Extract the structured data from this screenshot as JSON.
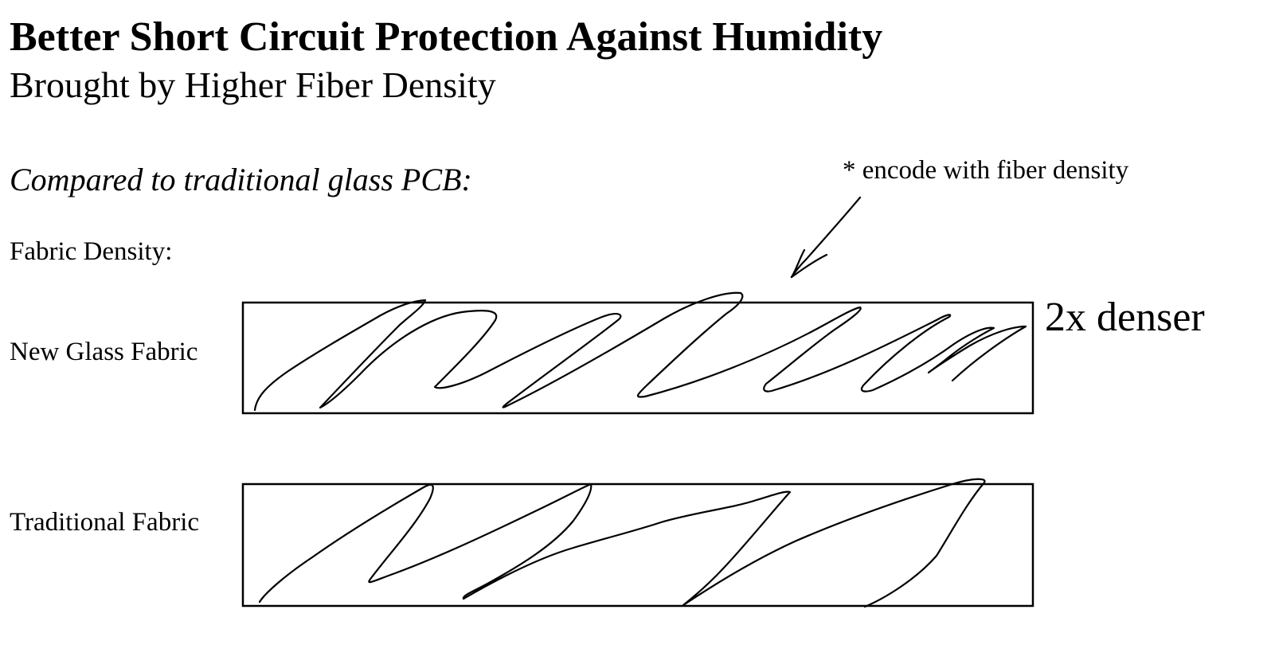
{
  "header": {
    "title": "Better Short Circuit Protection Against Humidity",
    "subtitle": "Brought by Higher Fiber Density"
  },
  "comparison": {
    "intro": "Compared to traditional glass PCB:",
    "section_label": "Fabric Density:"
  },
  "annotation": {
    "note": "* encode with fiber density",
    "callout": "2x denser"
  },
  "rows": [
    {
      "label": "New Glass Fabric"
    },
    {
      "label": "Traditional Fabric"
    }
  ]
}
